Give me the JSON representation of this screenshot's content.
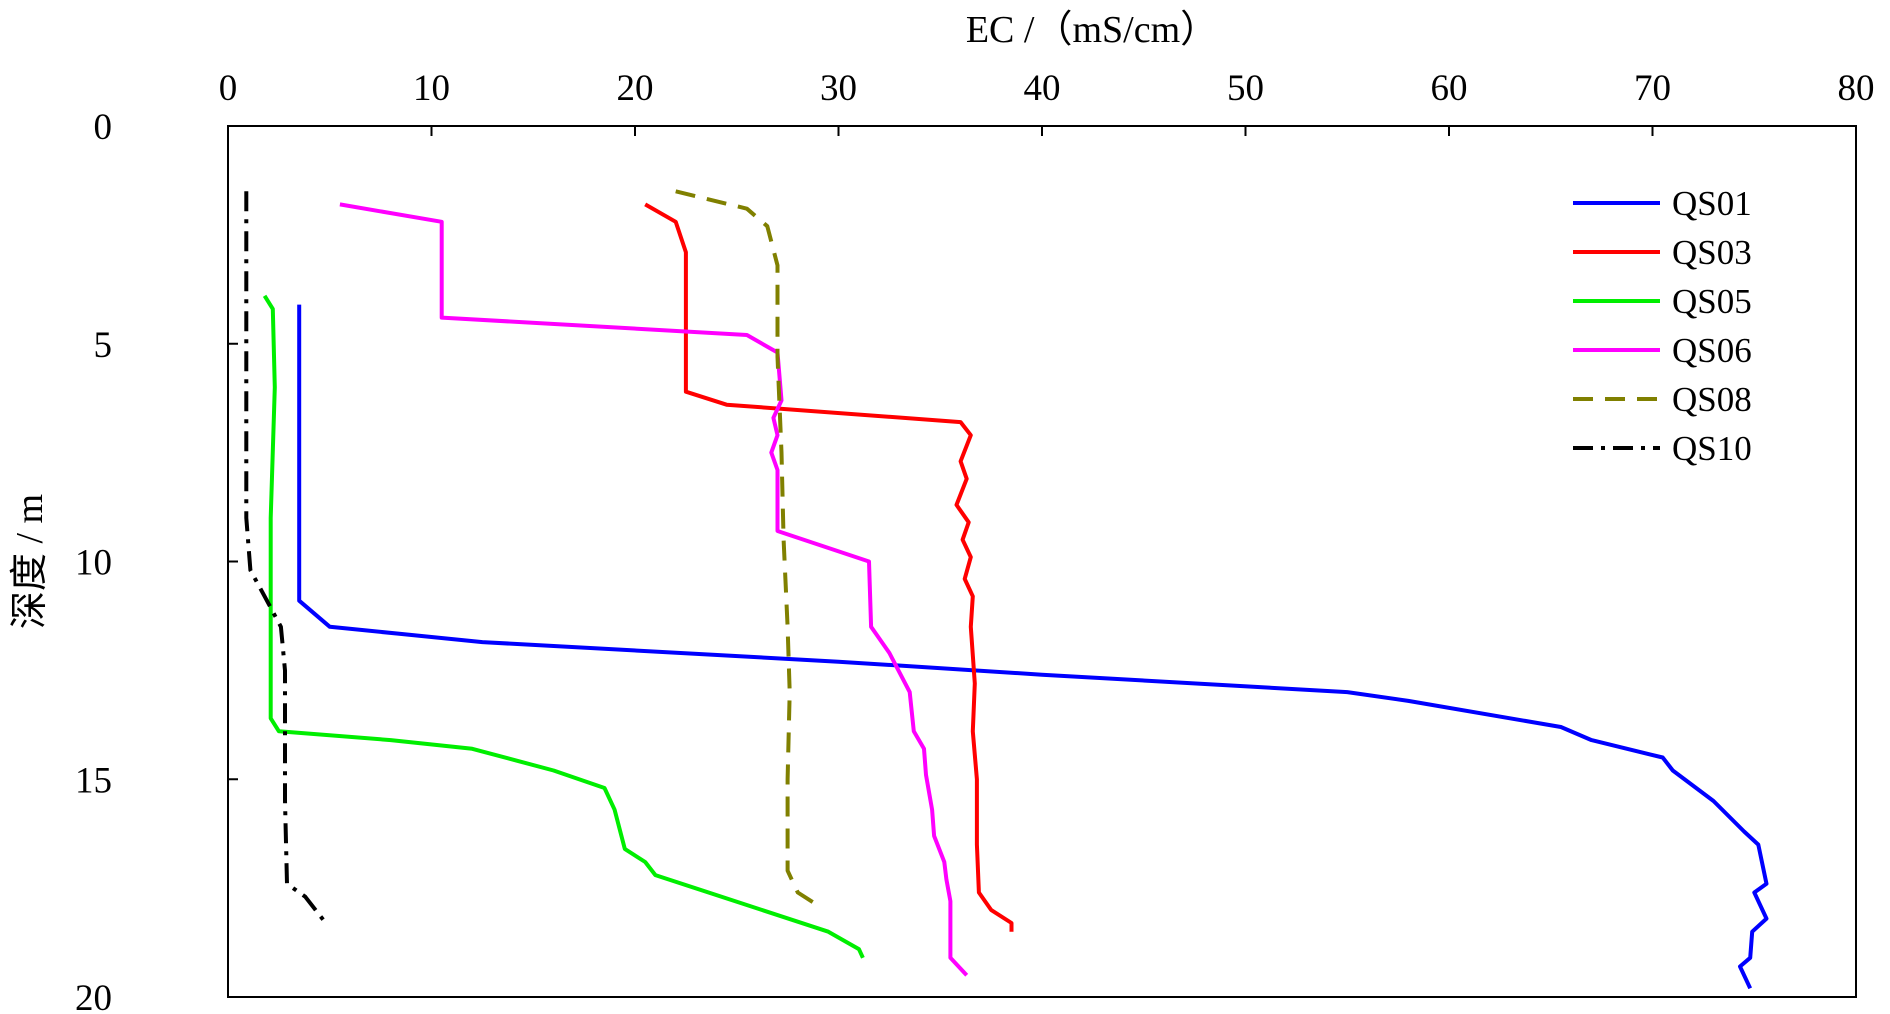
{
  "chart_data": {
    "type": "line",
    "xlabel": "EC /（mS/cm）",
    "ylabel": "深度 / m",
    "xlim": [
      0,
      80
    ],
    "ylim": [
      0,
      20
    ],
    "x_axis_position": "top",
    "y_axis_inverted": true,
    "x_ticks": [
      0,
      10,
      20,
      30,
      40,
      50,
      60,
      70,
      80
    ],
    "y_ticks": [
      0,
      5,
      10,
      15,
      20
    ],
    "x_tick_labels": [
      "0",
      "10",
      "20",
      "30",
      "40",
      "50",
      "60",
      "70",
      "80"
    ],
    "y_tick_labels": [
      "0",
      "5",
      "10",
      "15",
      "20"
    ],
    "grid": false,
    "legend": "top-right",
    "series": [
      {
        "name": "QS01",
        "color": "#0000ff",
        "dash": "solid",
        "points": [
          [
            3.5,
            4.1
          ],
          [
            3.5,
            10.9
          ],
          [
            5.0,
            11.5
          ],
          [
            12.5,
            11.85
          ],
          [
            30.0,
            12.3
          ],
          [
            40.0,
            12.6
          ],
          [
            55.0,
            13.0
          ],
          [
            58.0,
            13.2
          ],
          [
            65.5,
            13.8
          ],
          [
            67.0,
            14.1
          ],
          [
            70.5,
            14.5
          ],
          [
            71.0,
            14.8
          ],
          [
            73.0,
            15.5
          ],
          [
            74.5,
            16.2
          ],
          [
            75.2,
            16.5
          ],
          [
            75.6,
            17.4
          ],
          [
            75.0,
            17.6
          ],
          [
            75.6,
            18.2
          ],
          [
            74.9,
            18.5
          ],
          [
            74.8,
            19.1
          ],
          [
            74.3,
            19.3
          ],
          [
            74.8,
            19.8
          ]
        ]
      },
      {
        "name": "QS03",
        "color": "#ff0000",
        "dash": "solid",
        "points": [
          [
            20.5,
            1.8
          ],
          [
            22.0,
            2.2
          ],
          [
            22.5,
            2.9
          ],
          [
            22.5,
            4.3
          ],
          [
            22.5,
            6.1
          ],
          [
            24.5,
            6.4
          ],
          [
            36.0,
            6.8
          ],
          [
            36.5,
            7.1
          ],
          [
            36.0,
            7.7
          ],
          [
            36.3,
            8.1
          ],
          [
            35.8,
            8.7
          ],
          [
            36.4,
            9.1
          ],
          [
            36.1,
            9.5
          ],
          [
            36.5,
            9.9
          ],
          [
            36.2,
            10.4
          ],
          [
            36.6,
            10.8
          ],
          [
            36.5,
            11.5
          ],
          [
            36.7,
            12.8
          ],
          [
            36.6,
            13.9
          ],
          [
            36.8,
            15.0
          ],
          [
            36.8,
            16.5
          ],
          [
            36.9,
            17.6
          ],
          [
            37.5,
            18.0
          ],
          [
            38.5,
            18.3
          ],
          [
            38.5,
            18.5
          ]
        ]
      },
      {
        "name": "QS05",
        "color": "#00ee00",
        "dash": "solid",
        "points": [
          [
            1.8,
            3.9
          ],
          [
            2.2,
            4.2
          ],
          [
            2.3,
            6.0
          ],
          [
            2.1,
            9.0
          ],
          [
            2.1,
            12.0
          ],
          [
            2.1,
            13.6
          ],
          [
            2.5,
            13.9
          ],
          [
            8.0,
            14.1
          ],
          [
            12.0,
            14.3
          ],
          [
            16.0,
            14.8
          ],
          [
            18.5,
            15.2
          ],
          [
            19.0,
            15.7
          ],
          [
            19.5,
            16.6
          ],
          [
            20.5,
            16.9
          ],
          [
            21.0,
            17.2
          ],
          [
            29.5,
            18.5
          ],
          [
            31.0,
            18.9
          ],
          [
            31.2,
            19.1
          ]
        ]
      },
      {
        "name": "QS06",
        "color": "#ff00ff",
        "dash": "solid",
        "points": [
          [
            5.5,
            1.8
          ],
          [
            10.5,
            2.2
          ],
          [
            10.5,
            4.4
          ],
          [
            25.5,
            4.8
          ],
          [
            27.0,
            5.2
          ],
          [
            27.2,
            6.3
          ],
          [
            26.8,
            6.7
          ],
          [
            27.0,
            7.1
          ],
          [
            26.7,
            7.5
          ],
          [
            27.0,
            7.9
          ],
          [
            27.0,
            9.3
          ],
          [
            31.5,
            10.0
          ],
          [
            31.6,
            11.5
          ],
          [
            32.5,
            12.1
          ],
          [
            33.5,
            13.0
          ],
          [
            33.7,
            13.9
          ],
          [
            34.2,
            14.3
          ],
          [
            34.3,
            14.9
          ],
          [
            34.6,
            15.7
          ],
          [
            34.7,
            16.3
          ],
          [
            35.2,
            16.9
          ],
          [
            35.3,
            17.3
          ],
          [
            35.5,
            17.8
          ],
          [
            35.5,
            19.1
          ],
          [
            36.3,
            19.5
          ]
        ]
      },
      {
        "name": "QS08",
        "color": "#808000",
        "dash": "dashed",
        "points": [
          [
            22.0,
            1.5
          ],
          [
            25.5,
            1.9
          ],
          [
            26.5,
            2.3
          ],
          [
            27.0,
            3.2
          ],
          [
            27.0,
            5.3
          ],
          [
            27.2,
            7.5
          ],
          [
            27.3,
            9.5
          ],
          [
            27.5,
            11.5
          ],
          [
            27.6,
            13.0
          ],
          [
            27.5,
            15.0
          ],
          [
            27.5,
            17.1
          ],
          [
            28.0,
            17.6
          ],
          [
            29.0,
            17.9
          ]
        ]
      },
      {
        "name": "QS10",
        "color": "#000000",
        "dash": "dashdot",
        "points": [
          [
            0.9,
            1.5
          ],
          [
            0.9,
            3.0
          ],
          [
            0.9,
            6.0
          ],
          [
            0.9,
            9.0
          ],
          [
            1.1,
            10.2
          ],
          [
            1.8,
            10.8
          ],
          [
            2.6,
            11.5
          ],
          [
            2.8,
            12.5
          ],
          [
            2.8,
            13.5
          ],
          [
            2.8,
            15.5
          ],
          [
            2.9,
            17.4
          ],
          [
            3.8,
            17.7
          ],
          [
            4.8,
            18.3
          ]
        ]
      }
    ]
  }
}
